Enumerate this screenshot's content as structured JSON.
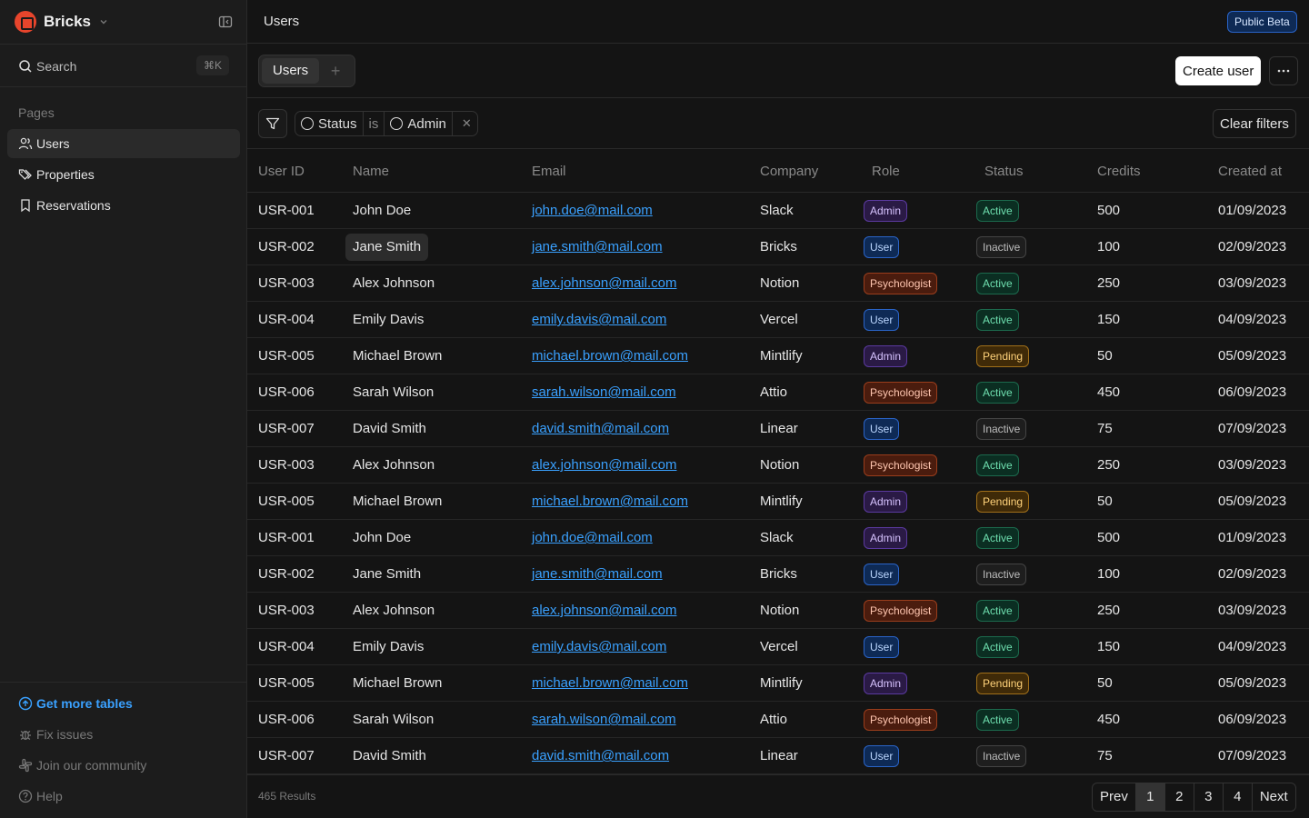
{
  "sidebar": {
    "brand": "Bricks",
    "search": {
      "placeholder": "Search",
      "shortcut": "⌘K"
    },
    "pages_label": "Pages",
    "items": [
      {
        "label": "Users",
        "icon": "users-icon",
        "active": true
      },
      {
        "label": "Properties",
        "icon": "tags-icon",
        "active": false
      },
      {
        "label": "Reservations",
        "icon": "bookmark-icon",
        "active": false
      }
    ],
    "footer": [
      {
        "label": "Get more tables",
        "icon": "arrow-up-circle-icon"
      },
      {
        "label": "Fix issues",
        "icon": "bug-icon"
      },
      {
        "label": "Join our community",
        "icon": "slack-icon"
      },
      {
        "label": "Help",
        "icon": "help-circle-icon"
      }
    ]
  },
  "header": {
    "title": "Users",
    "badge": "Public Beta"
  },
  "toolbar": {
    "tab_label": "Users",
    "add_tab": "+",
    "create_label": "Create user",
    "more": "more-icon"
  },
  "filters": {
    "field": "Status",
    "operator": "is",
    "value": "Admin",
    "clear_label": "Clear filters"
  },
  "table": {
    "columns": [
      "User ID",
      "Name",
      "Email",
      "Company",
      "Role",
      "Status",
      "Credits",
      "Created at"
    ],
    "rows": [
      {
        "id": "USR-001",
        "name": "John Doe",
        "email": "john.doe@mail.com",
        "company": "Slack",
        "role": "Admin",
        "status": "Active",
        "credits": "500",
        "created": "01/09/2023"
      },
      {
        "id": "USR-002",
        "name": "Jane Smith",
        "email": "jane.smith@mail.com",
        "company": "Bricks",
        "role": "User",
        "status": "Inactive",
        "credits": "100",
        "created": "02/09/2023"
      },
      {
        "id": "USR-003",
        "name": "Alex Johnson",
        "email": "alex.johnson@mail.com",
        "company": "Notion",
        "role": "Psychologist",
        "status": "Active",
        "credits": "250",
        "created": "03/09/2023"
      },
      {
        "id": "USR-004",
        "name": "Emily Davis",
        "email": "emily.davis@mail.com",
        "company": "Vercel",
        "role": "User",
        "status": "Active",
        "credits": "150",
        "created": "04/09/2023"
      },
      {
        "id": "USR-005",
        "name": "Michael Brown",
        "email": "michael.brown@mail.com",
        "company": "Mintlify",
        "role": "Admin",
        "status": "Pending",
        "credits": "50",
        "created": "05/09/2023"
      },
      {
        "id": "USR-006",
        "name": "Sarah Wilson",
        "email": "sarah.wilson@mail.com",
        "company": "Attio",
        "role": "Psychologist",
        "status": "Active",
        "credits": "450",
        "created": "06/09/2023"
      },
      {
        "id": "USR-007",
        "name": "David Smith",
        "email": "david.smith@mail.com",
        "company": "Linear",
        "role": "User",
        "status": "Inactive",
        "credits": "75",
        "created": "07/09/2023"
      },
      {
        "id": "USR-003",
        "name": "Alex Johnson",
        "email": "alex.johnson@mail.com",
        "company": "Notion",
        "role": "Psychologist",
        "status": "Active",
        "credits": "250",
        "created": "03/09/2023"
      },
      {
        "id": "USR-005",
        "name": "Michael Brown",
        "email": "michael.brown@mail.com",
        "company": "Mintlify",
        "role": "Admin",
        "status": "Pending",
        "credits": "50",
        "created": "05/09/2023"
      },
      {
        "id": "USR-001",
        "name": "John Doe",
        "email": "john.doe@mail.com",
        "company": "Slack",
        "role": "Admin",
        "status": "Active",
        "credits": "500",
        "created": "01/09/2023"
      },
      {
        "id": "USR-002",
        "name": "Jane Smith",
        "email": "jane.smith@mail.com",
        "company": "Bricks",
        "role": "User",
        "status": "Inactive",
        "credits": "100",
        "created": "02/09/2023"
      },
      {
        "id": "USR-003",
        "name": "Alex Johnson",
        "email": "alex.johnson@mail.com",
        "company": "Notion",
        "role": "Psychologist",
        "status": "Active",
        "credits": "250",
        "created": "03/09/2023"
      },
      {
        "id": "USR-004",
        "name": "Emily Davis",
        "email": "emily.davis@mail.com",
        "company": "Vercel",
        "role": "User",
        "status": "Active",
        "credits": "150",
        "created": "04/09/2023"
      },
      {
        "id": "USR-005",
        "name": "Michael Brown",
        "email": "michael.brown@mail.com",
        "company": "Mintlify",
        "role": "Admin",
        "status": "Pending",
        "credits": "50",
        "created": "05/09/2023"
      },
      {
        "id": "USR-006",
        "name": "Sarah Wilson",
        "email": "sarah.wilson@mail.com",
        "company": "Attio",
        "role": "Psychologist",
        "status": "Active",
        "credits": "450",
        "created": "06/09/2023"
      },
      {
        "id": "USR-007",
        "name": "David Smith",
        "email": "david.smith@mail.com",
        "company": "Linear",
        "role": "User",
        "status": "Inactive",
        "credits": "75",
        "created": "07/09/2023"
      }
    ]
  },
  "footer": {
    "results": "465 Results",
    "pagination": {
      "prev": "Prev",
      "pages": [
        "1",
        "2",
        "3",
        "4"
      ],
      "current": "1",
      "next": "Next"
    }
  },
  "colors": {
    "accent": "#3aa1ff",
    "brand": "#e8452c",
    "background": "#141414",
    "sidebar": "#1c1c1c"
  }
}
